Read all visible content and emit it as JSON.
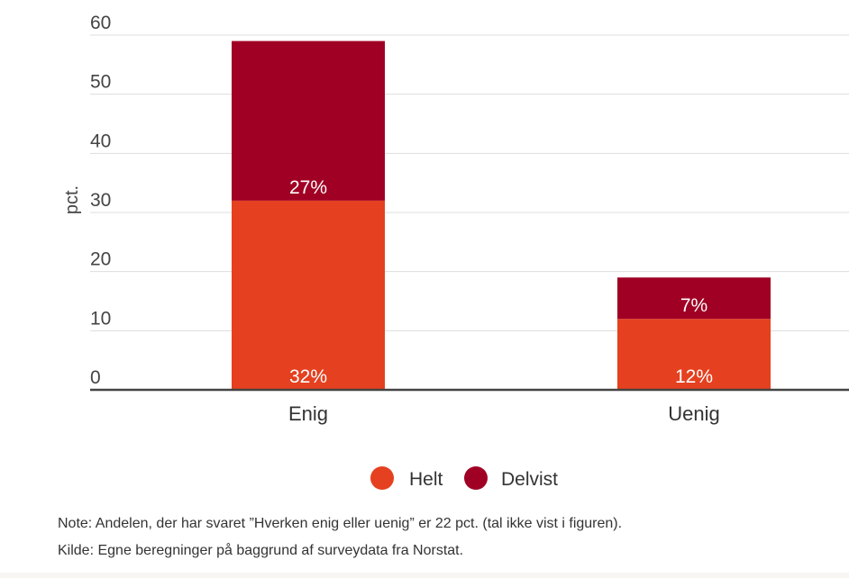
{
  "chart_data": {
    "type": "bar",
    "stacked": true,
    "categories": [
      "Enig",
      "Uenig"
    ],
    "series": [
      {
        "name": "Helt",
        "values": [
          32,
          12
        ],
        "labels": [
          "32%",
          "12%"
        ],
        "color": "#e5401f"
      },
      {
        "name": "Delvist",
        "values": [
          27,
          7
        ],
        "labels": [
          "27%",
          "7%"
        ],
        "color": "#a00024"
      }
    ],
    "ylabel": "pct.",
    "ylim": [
      0,
      60
    ],
    "yticks": [
      0,
      10,
      20,
      30,
      40,
      50,
      60
    ],
    "grid": true,
    "legend_position": "bottom-center"
  },
  "footnotes": {
    "note": "Note: Andelen, der har svaret ”Hverken enig eller uenig” er 22 pct. (tal ikke vist i figuren).",
    "source": "Kilde: Egne beregninger på baggrund af surveydata fra Norstat."
  },
  "colors": {
    "grid": "#dddddd",
    "axis": "#444444"
  }
}
